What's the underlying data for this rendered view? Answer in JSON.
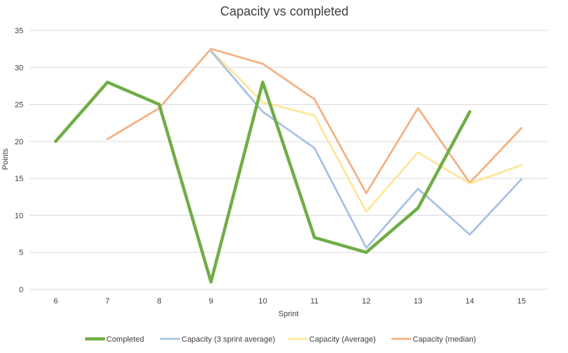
{
  "chart_data": {
    "type": "line",
    "title": "Capacity vs completed",
    "xlabel": "Sprint",
    "ylabel": "Points",
    "categories": [
      "6",
      "7",
      "8",
      "9",
      "10",
      "11",
      "12",
      "13",
      "14",
      "15"
    ],
    "ylim": [
      0,
      35
    ],
    "yticks": [
      0,
      5,
      10,
      15,
      20,
      25,
      30,
      35
    ],
    "grid": true,
    "legend_position": "bottom",
    "series": [
      {
        "name": "Capacity (median)",
        "color": "#F4B183",
        "values": [
          null,
          20.3,
          24.5,
          32.5,
          30.5,
          25.7,
          13,
          24.5,
          14.4,
          21.8
        ]
      },
      {
        "name": "Capacity (Average)",
        "color": "#FFE699",
        "values": [
          null,
          null,
          null,
          32.3,
          25.3,
          23.5,
          10.5,
          18.5,
          14.3,
          16.8
        ]
      },
      {
        "name": "Capacity (3 sprint average)",
        "color": "#A9C1E4",
        "values": [
          null,
          null,
          null,
          32.2,
          24,
          19.1,
          5.6,
          13.6,
          7.4,
          14.9
        ]
      },
      {
        "name": "Completed",
        "color": "#70AD47",
        "values": [
          20,
          28,
          25,
          1,
          28,
          7,
          5,
          11,
          24,
          null
        ]
      }
    ],
    "legend_order": [
      "Completed",
      "Capacity (3 sprint average)",
      "Capacity (Average)",
      "Capacity (median)"
    ]
  }
}
